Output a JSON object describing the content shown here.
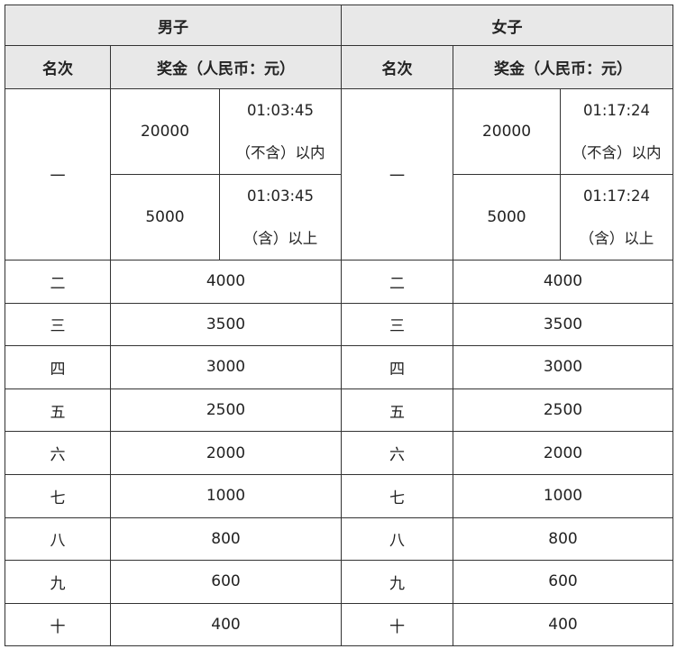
{
  "header": {
    "men": "男子",
    "women": "女子"
  },
  "subheader": {
    "rank": "名次",
    "prize": "奖金（人民币：元）"
  },
  "first": {
    "rank": "一",
    "men": [
      {
        "prize": "20000",
        "time": "01:03:45",
        "cond": "（不含）以内"
      },
      {
        "prize": "5000",
        "time": "01:03:45",
        "cond": "（含）以上"
      }
    ],
    "women": [
      {
        "prize": "20000",
        "time": "01:17:24",
        "cond": "（不含）以内"
      },
      {
        "prize": "5000",
        "time": "01:17:24",
        "cond": "（含）以上"
      }
    ]
  },
  "rows": [
    {
      "rank": "二",
      "men": "4000",
      "women": "4000"
    },
    {
      "rank": "三",
      "men": "3500",
      "women": "3500"
    },
    {
      "rank": "四",
      "men": "3000",
      "women": "3000"
    },
    {
      "rank": "五",
      "men": "2500",
      "women": "2500"
    },
    {
      "rank": "六",
      "men": "2000",
      "women": "2000"
    },
    {
      "rank": "七",
      "men": "1000",
      "women": "1000"
    },
    {
      "rank": "八",
      "men": "800",
      "women": "800"
    },
    {
      "rank": "九",
      "men": "600",
      "women": "600"
    },
    {
      "rank": "十",
      "men": "400",
      "women": "400"
    }
  ]
}
